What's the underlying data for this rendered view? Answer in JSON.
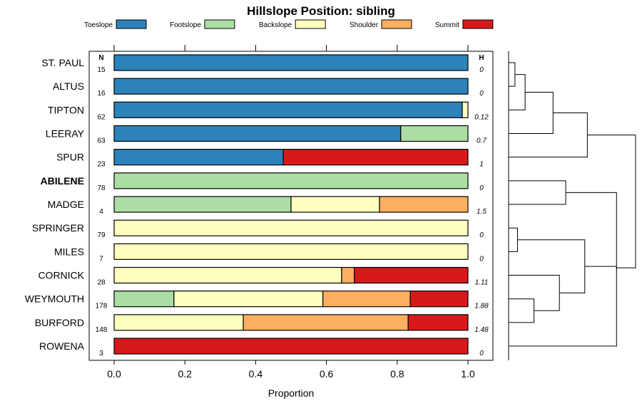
{
  "chart_data": {
    "type": "bar",
    "orientation": "horizontal",
    "stacked": true,
    "title": "Hillslope Position: sibling",
    "xlabel": "Proportion",
    "ylabel": "",
    "xlim": [
      0,
      1
    ],
    "xticks": [
      "0.0",
      "0.2",
      "0.4",
      "0.6",
      "0.8",
      "1.0"
    ],
    "xtick_values": [
      0,
      0.2,
      0.4,
      0.6,
      0.8,
      1.0
    ],
    "n_header": "N",
    "h_header": "H",
    "legend_position": "top",
    "series": [
      {
        "name": "Toeslope",
        "color": "#2b83ba"
      },
      {
        "name": "Footslope",
        "color": "#abdda4"
      },
      {
        "name": "Backslope",
        "color": "#ffffbf"
      },
      {
        "name": "Shoulder",
        "color": "#fdae61"
      },
      {
        "name": "Summit",
        "color": "#d7191c"
      }
    ],
    "categories": [
      {
        "label": "ST. PAUL",
        "bold": false,
        "n": "15",
        "h": "0",
        "values": [
          1.0,
          0,
          0,
          0,
          0
        ]
      },
      {
        "label": "ALTUS",
        "bold": false,
        "n": "16",
        "h": "0",
        "values": [
          1.0,
          0,
          0,
          0,
          0
        ]
      },
      {
        "label": "TIPTON",
        "bold": false,
        "n": "62",
        "h": "0.12",
        "values": [
          0.984,
          0,
          0.016,
          0,
          0
        ]
      },
      {
        "label": "LEERAY",
        "bold": false,
        "n": "63",
        "h": "0.7",
        "values": [
          0.81,
          0.19,
          0,
          0,
          0
        ]
      },
      {
        "label": "SPUR",
        "bold": false,
        "n": "23",
        "h": "1",
        "values": [
          0.478,
          0,
          0,
          0,
          0.522
        ]
      },
      {
        "label": "ABILENE",
        "bold": true,
        "n": "78",
        "h": "0",
        "values": [
          0,
          1.0,
          0,
          0,
          0
        ]
      },
      {
        "label": "MADGE",
        "bold": false,
        "n": "4",
        "h": "1.5",
        "values": [
          0,
          0.5,
          0.25,
          0.25,
          0
        ]
      },
      {
        "label": "SPRINGER",
        "bold": false,
        "n": "79",
        "h": "0",
        "values": [
          0,
          0,
          1.0,
          0,
          0
        ]
      },
      {
        "label": "MILES",
        "bold": false,
        "n": "7",
        "h": "0",
        "values": [
          0,
          0,
          1.0,
          0,
          0
        ]
      },
      {
        "label": "CORNICK",
        "bold": false,
        "n": "28",
        "h": "1.11",
        "values": [
          0,
          0,
          0.643,
          0.036,
          0.321
        ]
      },
      {
        "label": "WEYMOUTH",
        "bold": false,
        "n": "178",
        "h": "1.88",
        "values": [
          0,
          0.169,
          0.421,
          0.247,
          0.163
        ]
      },
      {
        "label": "BURFORD",
        "bold": false,
        "n": "148",
        "h": "1.48",
        "values": [
          0,
          0,
          0.365,
          0.466,
          0.169
        ]
      },
      {
        "label": "ROWENA",
        "bold": false,
        "n": "3",
        "h": "0",
        "values": [
          0,
          0,
          0,
          0,
          1.0
        ]
      }
    ],
    "dendrogram": {
      "merges": [
        [
          [
            0,
            1
          ],
          0.05
        ],
        [
          [
            "m0",
            2
          ],
          0.13
        ],
        [
          [
            "m1",
            3
          ],
          0.35
        ],
        [
          [
            "m2",
            4
          ],
          0.62
        ],
        [
          [
            7,
            8
          ],
          0.07
        ],
        [
          [
            10,
            11
          ],
          0.2
        ],
        [
          [
            "m5",
            9
          ],
          0.4
        ],
        [
          [
            "m6",
            "m4"
          ],
          0.6
        ],
        [
          [
            5,
            6
          ],
          0.45
        ],
        [
          [
            "m8",
            12
          ],
          0.85
        ],
        [
          [
            "m7",
            "m9"
          ],
          0.85
        ],
        [
          [
            "m3",
            "m10"
          ],
          1.0
        ]
      ]
    }
  }
}
